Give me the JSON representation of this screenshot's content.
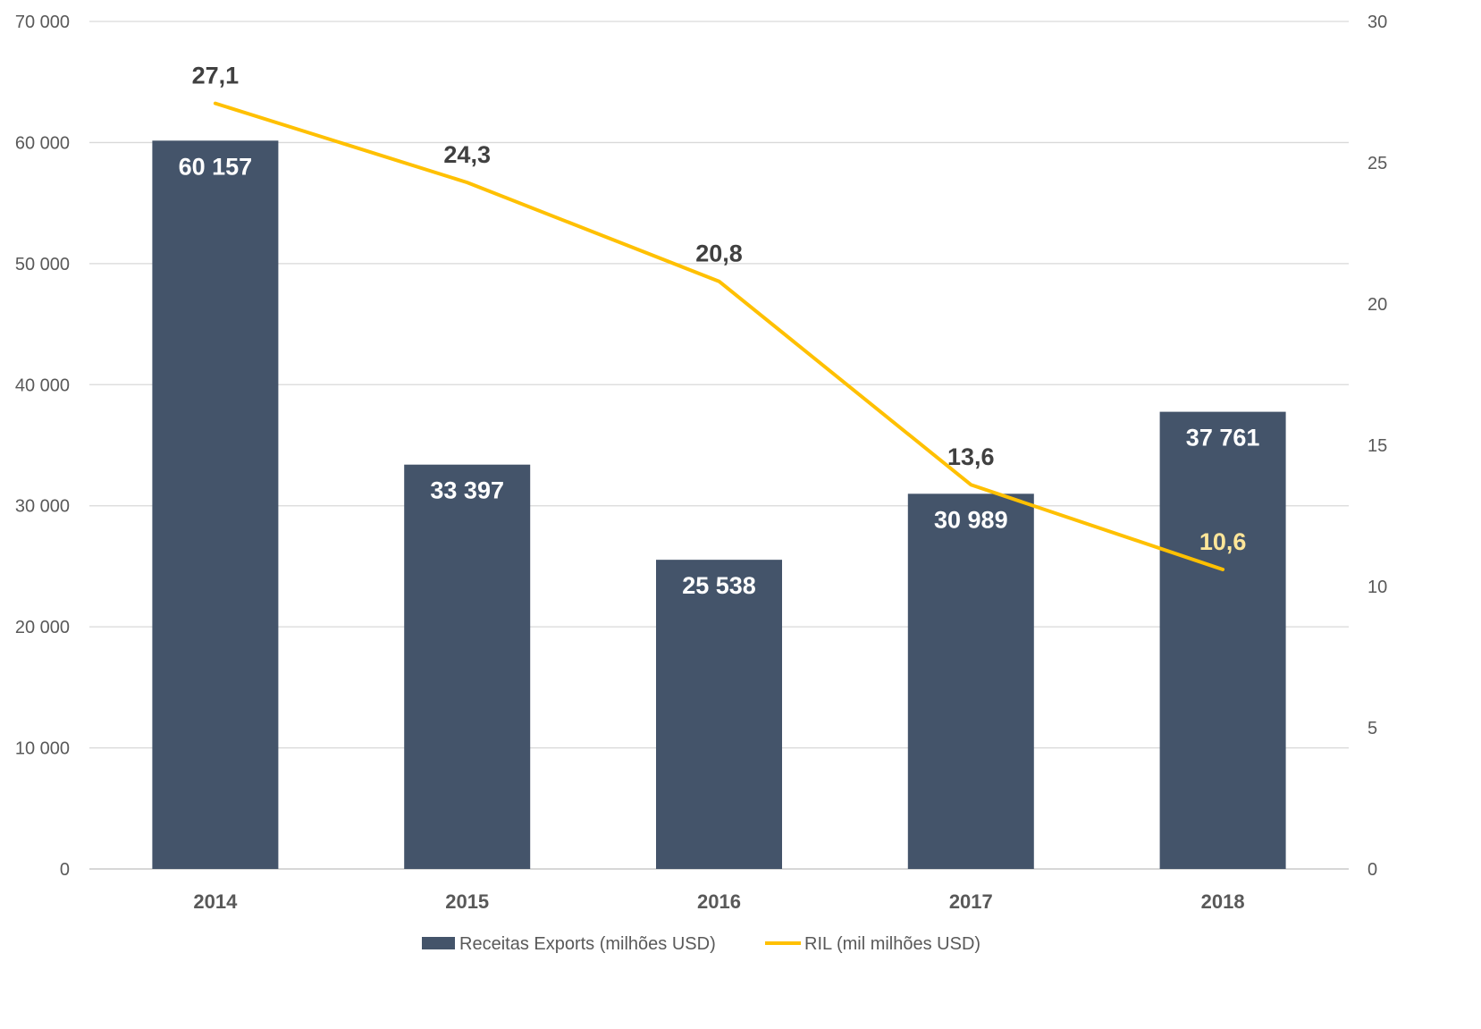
{
  "chart_data": {
    "type": "bar",
    "categories": [
      "2014",
      "2015",
      "2016",
      "2017",
      "2018"
    ],
    "series": [
      {
        "name": "Receitas Exports (milhões USD)",
        "type": "bar",
        "axis": "left",
        "color": "#44546A",
        "values": [
          60157,
          33397,
          25538,
          30989,
          37761
        ]
      },
      {
        "name": "RIL (mil milhões USD)",
        "type": "line",
        "axis": "right",
        "color": "#FFC000",
        "values": [
          27.1,
          24.3,
          20.8,
          13.6,
          10.6
        ]
      }
    ],
    "y_axis": {
      "range": [
        0,
        70000
      ],
      "ticks": [
        0,
        10000,
        20000,
        30000,
        40000,
        50000,
        60000,
        70000
      ]
    },
    "y2_axis": {
      "range": [
        0,
        30
      ],
      "ticks": [
        0,
        5,
        10,
        15,
        20,
        25,
        30
      ]
    },
    "grid": true,
    "legend_position": "bottom",
    "data_labels": true,
    "bar_label_color": "#FFFFFF",
    "line_label_colors": [
      "#404040",
      "#404040",
      "#404040",
      "#404040",
      "#FFE699"
    ],
    "gridline_color": "#D9D9D9",
    "tick_label_color": "#595959"
  }
}
